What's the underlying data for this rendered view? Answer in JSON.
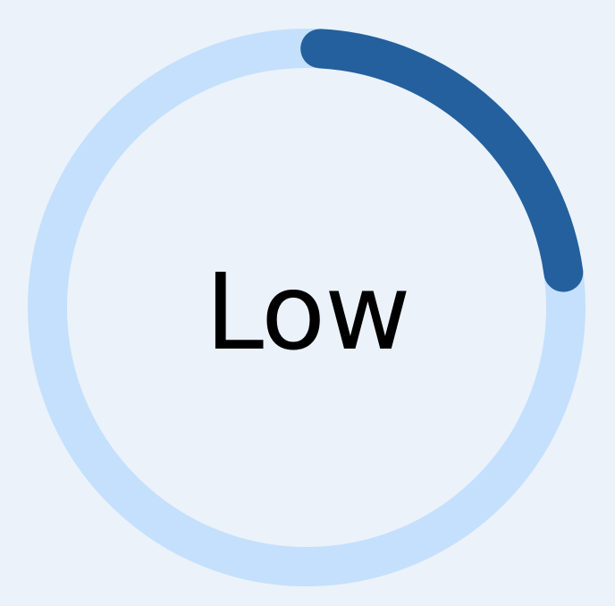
{
  "gauge": {
    "label": "Low",
    "value_fraction": 0.22,
    "track_color": "#c5e0fc",
    "fill_color": "#23609d",
    "label_color": "#000000",
    "background_color": "#ebf2fa"
  }
}
